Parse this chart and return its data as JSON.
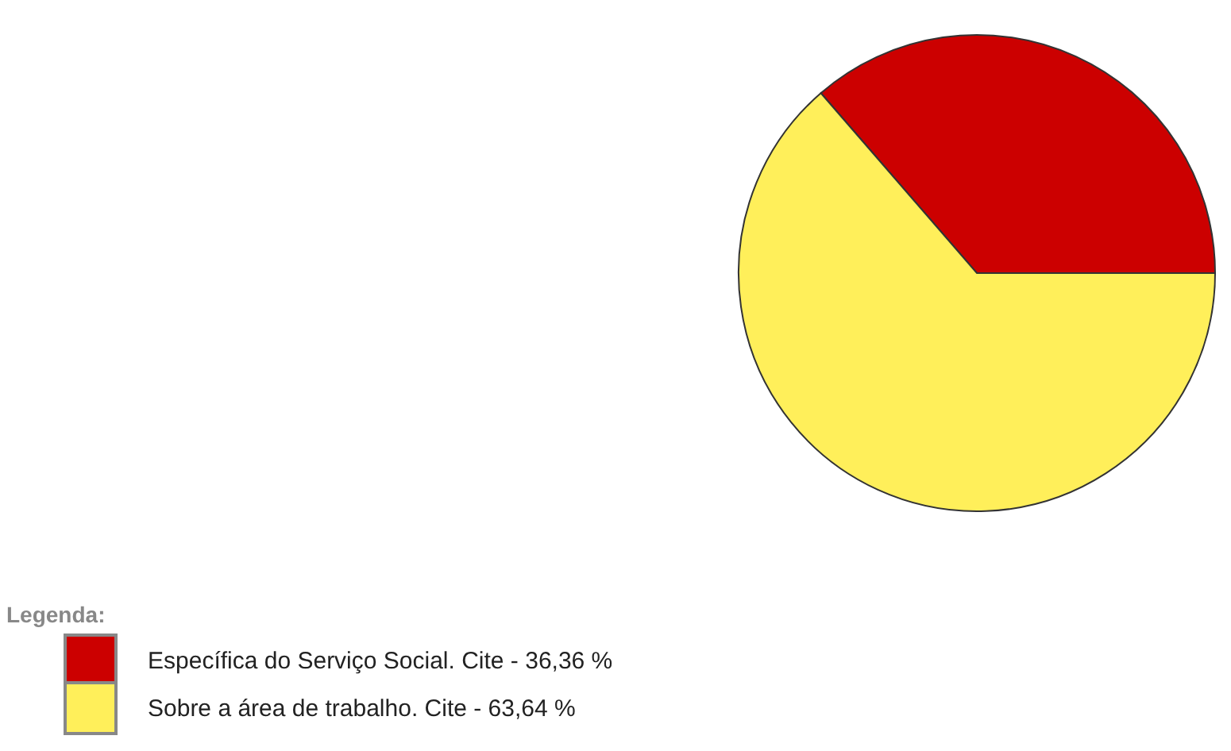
{
  "chart_data": {
    "type": "pie",
    "legend_title": "Legenda:",
    "legend": "bottom left",
    "categories": [
      "Específica do Serviço Social. Cite",
      "Sobre a área de trabalho. Cite"
    ],
    "values": [
      36.36,
      63.64
    ],
    "value_labels": [
      "36,36 %",
      "63,64 %"
    ],
    "colors": [
      "#cc0000",
      "#ffef5a"
    ]
  }
}
